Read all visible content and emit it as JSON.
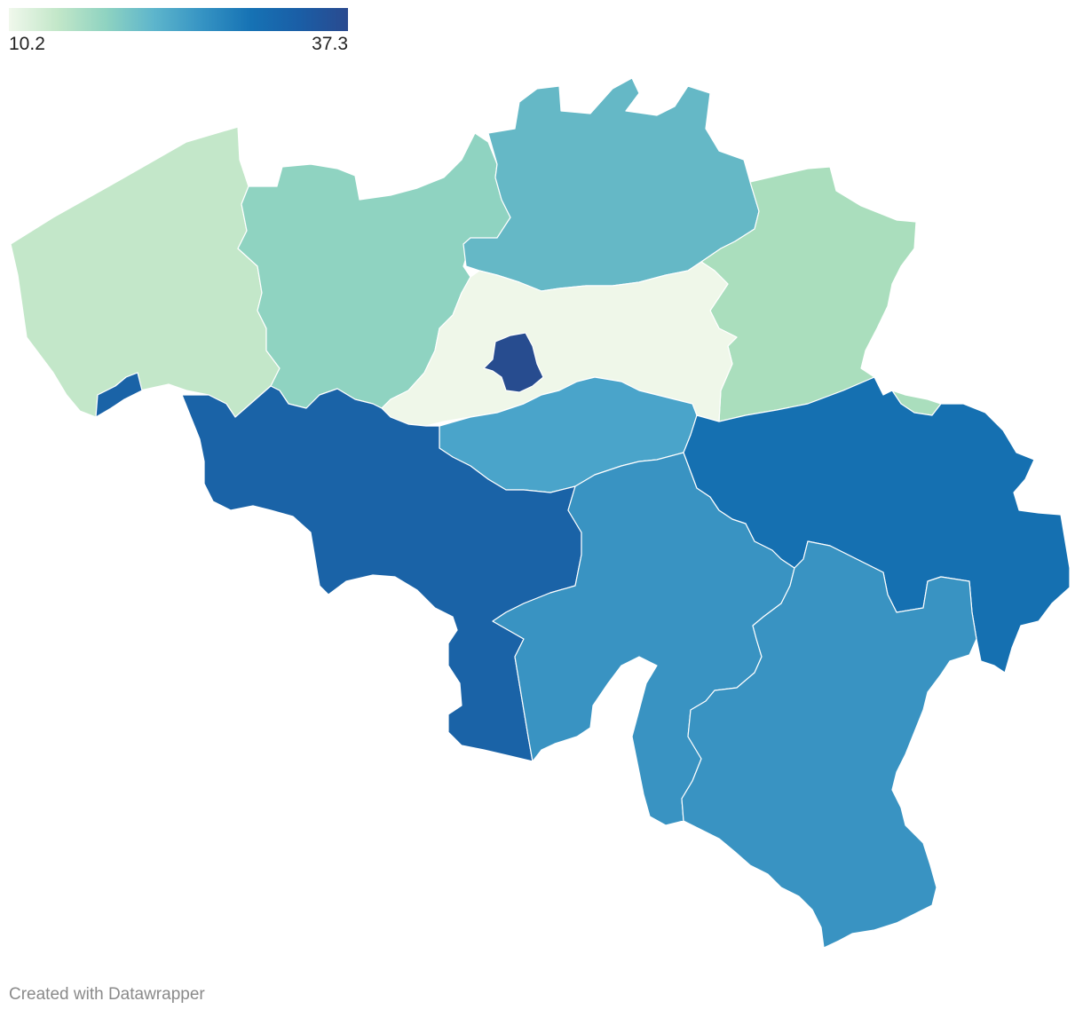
{
  "legend": {
    "min_label": "10.2",
    "max_label": "37.3",
    "min_value": 10.2,
    "max_value": 37.3,
    "colors": [
      "#f0f8ec",
      "#c3e7c9",
      "#8fd3c1",
      "#5db5cc",
      "#3593c3",
      "#1672b4",
      "#1a5ea6",
      "#2a4a8f"
    ]
  },
  "regions": [
    {
      "id": "west-flanders",
      "color": "#c3e7c9"
    },
    {
      "id": "east-flanders",
      "color": "#8fd3c1"
    },
    {
      "id": "antwerp",
      "color": "#65b8c6"
    },
    {
      "id": "limburg",
      "color": "#aadebd"
    },
    {
      "id": "flemish-brabant",
      "color": "#eff7e9"
    },
    {
      "id": "brussels",
      "color": "#274c8f"
    },
    {
      "id": "walloon-brabant",
      "color": "#4aa4ca"
    },
    {
      "id": "hainaut",
      "color": "#1a63a7"
    },
    {
      "id": "liege",
      "color": "#1570b1"
    },
    {
      "id": "namur",
      "color": "#3993c2"
    },
    {
      "id": "luxembourg",
      "color": "#3993c2"
    },
    {
      "id": "comines-warneton",
      "color": "#1a63a7"
    }
  ],
  "footer": {
    "credit": "Created with Datawrapper"
  }
}
